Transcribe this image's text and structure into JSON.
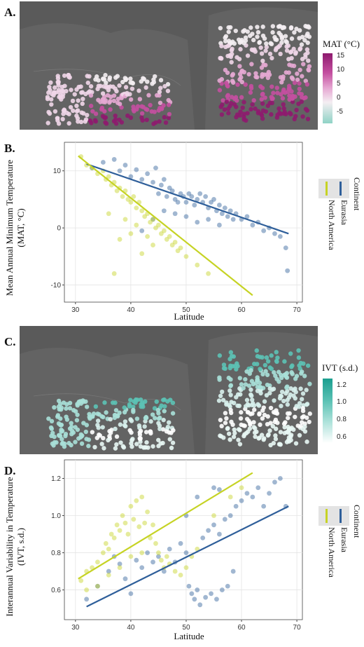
{
  "panels": {
    "a": {
      "letter": "A."
    },
    "b": {
      "letter": "B."
    },
    "c": {
      "letter": "C."
    },
    "d": {
      "letter": "D."
    }
  },
  "legend_mat": {
    "title": "MAT (°C)",
    "ticks": [
      "15",
      "10",
      "5",
      "0",
      "-5"
    ],
    "colors": [
      "#8e1a6e",
      "#c44fa0",
      "#e6a9d3",
      "#f4eef2",
      "#8fd3c6"
    ]
  },
  "legend_ivt": {
    "title": "IVT (s.d.)",
    "ticks": [
      "1.2",
      "1.0",
      "0.8",
      "0.6"
    ],
    "colors": [
      "#1a9e8f",
      "#5cc2b5",
      "#a8e0d8",
      "#ffffff"
    ]
  },
  "continent_legend": {
    "title": "Continent",
    "items": [
      {
        "name": "Eurasia",
        "color": "#2f5f9a"
      },
      {
        "name": "North America",
        "color": "#c6d324"
      }
    ]
  },
  "chart_data": [
    {
      "type": "scatter",
      "panel": "B",
      "xlabel": "Latitude",
      "ylabel": "Mean Annual Minimum Temperature (MAT, °C)",
      "ylabel_lines": [
        "Mean Annual Minimum Temperature",
        "(MAT, °C)"
      ],
      "xlim": [
        28,
        71
      ],
      "ylim": [
        -13,
        15
      ],
      "xticks": [
        30,
        40,
        50,
        60,
        70
      ],
      "yticks": [
        10,
        0,
        -10
      ],
      "grid": true,
      "series": [
        {
          "name": "Eurasia",
          "color": "#2f5f9a",
          "fit": [
            [
              32,
              11.2
            ],
            [
              68.5,
              -1.0
            ]
          ],
          "points": [
            [
              33,
              10.5
            ],
            [
              35,
              11.5
            ],
            [
              37,
              12.0
            ],
            [
              38,
              10.0
            ],
            [
              39,
              11.0
            ],
            [
              40,
              9.0
            ],
            [
              41,
              10.2
            ],
            [
              42,
              8.5
            ],
            [
              43,
              9.5
            ],
            [
              44,
              8.0
            ],
            [
              44.5,
              10.5
            ],
            [
              45,
              6.0
            ],
            [
              45.5,
              7.5
            ],
            [
              46,
              8.5
            ],
            [
              46.5,
              5.5
            ],
            [
              47,
              7.0
            ],
            [
              47.5,
              6.5
            ],
            [
              48,
              5.0
            ],
            [
              48.5,
              4.5
            ],
            [
              49,
              6.0
            ],
            [
              49.5,
              5.5
            ],
            [
              50,
              4.5
            ],
            [
              50.5,
              6.0
            ],
            [
              51,
              5.5
            ],
            [
              51.5,
              4.0
            ],
            [
              52,
              5.0
            ],
            [
              52.5,
              6.0
            ],
            [
              53,
              4.5
            ],
            [
              53.5,
              5.5
            ],
            [
              54,
              3.5
            ],
            [
              54.5,
              4.5
            ],
            [
              55,
              5.0
            ],
            [
              55.5,
              3.0
            ],
            [
              56,
              4.0
            ],
            [
              56.5,
              2.5
            ],
            [
              57,
              3.5
            ],
            [
              57.5,
              2.0
            ],
            [
              58,
              3.0
            ],
            [
              58.5,
              1.5
            ],
            [
              59,
              2.5
            ],
            [
              60,
              1.5
            ],
            [
              61,
              2.0
            ],
            [
              62,
              0.5
            ],
            [
              63,
              1.0
            ],
            [
              64,
              -0.5
            ],
            [
              65,
              0.0
            ],
            [
              66,
              -1.0
            ],
            [
              67,
              -1.5
            ],
            [
              68,
              -3.5
            ],
            [
              68.3,
              -7.5
            ],
            [
              52,
              1.0
            ],
            [
              54,
              1.5
            ],
            [
              48,
              2.5
            ],
            [
              50,
              2.0
            ],
            [
              46,
              3.0
            ],
            [
              44,
              1.5
            ],
            [
              42,
              -0.5
            ],
            [
              56,
              0.5
            ]
          ]
        },
        {
          "name": "North America",
          "color": "#c6d324",
          "fit": [
            [
              30.5,
              12.6
            ],
            [
              62,
              -11.8
            ]
          ],
          "points": [
            [
              31,
              12.5
            ],
            [
              32,
              11.0
            ],
            [
              33,
              10.5
            ],
            [
              34,
              9.5
            ],
            [
              35,
              10.0
            ],
            [
              35.5,
              8.5
            ],
            [
              36,
              9.0
            ],
            [
              36.5,
              7.5
            ],
            [
              37,
              8.0
            ],
            [
              37.5,
              6.5
            ],
            [
              38,
              7.0
            ],
            [
              38.5,
              5.5
            ],
            [
              39,
              6.5
            ],
            [
              39.5,
              5.0
            ],
            [
              40,
              4.5
            ],
            [
              40.5,
              5.5
            ],
            [
              41,
              3.5
            ],
            [
              41.5,
              4.5
            ],
            [
              42,
              3.0
            ],
            [
              42.5,
              2.0
            ],
            [
              43,
              2.5
            ],
            [
              43.5,
              1.0
            ],
            [
              44,
              1.5
            ],
            [
              44.5,
              0.0
            ],
            [
              45,
              0.5
            ],
            [
              45.5,
              -1.0
            ],
            [
              46,
              -0.5
            ],
            [
              46.5,
              -2.0
            ],
            [
              47,
              -1.5
            ],
            [
              47.5,
              -3.0
            ],
            [
              48,
              -2.5
            ],
            [
              48.5,
              -4.0
            ],
            [
              49,
              -3.5
            ],
            [
              50,
              -5.0
            ],
            [
              52,
              -6.5
            ],
            [
              54,
              -8.0
            ],
            [
              38,
              -2.0
            ],
            [
              40,
              -1.0
            ],
            [
              42,
              -4.5
            ],
            [
              44,
              -3.0
            ],
            [
              36,
              2.5
            ],
            [
              39,
              1.5
            ],
            [
              41,
              0.5
            ],
            [
              43,
              -1.5
            ],
            [
              37,
              -8.0
            ]
          ]
        }
      ]
    },
    {
      "type": "scatter",
      "panel": "D",
      "xlabel": "Latitude",
      "ylabel": "Interannual Variability in Temperature (IVT, s.d.)",
      "ylabel_lines": [
        "Interannual Variability in Temperature",
        "(IVT, s.d.)"
      ],
      "xlim": [
        28,
        71
      ],
      "ylim": [
        0.44,
        1.3
      ],
      "xticks": [
        30,
        40,
        50,
        60,
        70
      ],
      "yticks": [
        1.2,
        1.0,
        0.8,
        0.6
      ],
      "grid": true,
      "series": [
        {
          "name": "Eurasia",
          "color": "#2f5f9a",
          "fit": [
            [
              32,
              0.51
            ],
            [
              68.5,
              1.05
            ]
          ],
          "points": [
            [
              32,
              0.55
            ],
            [
              34,
              0.62
            ],
            [
              36,
              0.7
            ],
            [
              37,
              0.78
            ],
            [
              38,
              0.74
            ],
            [
              39,
              0.66
            ],
            [
              40,
              0.58
            ],
            [
              41,
              0.76
            ],
            [
              42,
              0.72
            ],
            [
              43,
              0.8
            ],
            [
              44,
              0.75
            ],
            [
              45,
              0.78
            ],
            [
              46,
              0.7
            ],
            [
              47,
              0.82
            ],
            [
              48,
              0.75
            ],
            [
              49,
              0.85
            ],
            [
              50,
              0.8
            ],
            [
              50.5,
              0.62
            ],
            [
              51,
              0.58
            ],
            [
              51.5,
              0.55
            ],
            [
              52,
              0.6
            ],
            [
              52.5,
              0.52
            ],
            [
              53,
              0.88
            ],
            [
              53.5,
              0.56
            ],
            [
              54,
              0.92
            ],
            [
              54.5,
              0.58
            ],
            [
              55,
              0.95
            ],
            [
              55.5,
              0.55
            ],
            [
              56,
              0.9
            ],
            [
              56.5,
              0.6
            ],
            [
              57,
              0.98
            ],
            [
              57.5,
              0.62
            ],
            [
              58,
              1.0
            ],
            [
              58.5,
              0.7
            ],
            [
              59,
              1.05
            ],
            [
              60,
              1.08
            ],
            [
              61,
              1.12
            ],
            [
              62,
              1.1
            ],
            [
              63,
              1.15
            ],
            [
              64,
              1.05
            ],
            [
              65,
              1.12
            ],
            [
              66,
              1.18
            ],
            [
              67,
              1.2
            ],
            [
              68,
              1.05
            ],
            [
              55,
              1.15
            ],
            [
              56,
              1.14
            ],
            [
              52,
              1.1
            ],
            [
              50,
              1.0
            ]
          ]
        },
        {
          "name": "North America",
          "color": "#c6d324",
          "fit": [
            [
              30.5,
              0.66
            ],
            [
              62,
              1.23
            ]
          ],
          "points": [
            [
              31,
              0.65
            ],
            [
              32,
              0.7
            ],
            [
              33,
              0.72
            ],
            [
              34,
              0.75
            ],
            [
              35,
              0.8
            ],
            [
              35.5,
              0.85
            ],
            [
              36,
              0.82
            ],
            [
              36.5,
              0.9
            ],
            [
              37,
              0.88
            ],
            [
              37.5,
              0.95
            ],
            [
              38,
              0.92
            ],
            [
              38.5,
              1.0
            ],
            [
              39,
              0.96
            ],
            [
              39.5,
              0.9
            ],
            [
              40,
              1.05
            ],
            [
              40.5,
              0.98
            ],
            [
              41,
              1.08
            ],
            [
              41.5,
              0.94
            ],
            [
              42,
              1.1
            ],
            [
              42.5,
              0.96
            ],
            [
              43,
              1.02
            ],
            [
              43.5,
              0.88
            ],
            [
              44,
              0.95
            ],
            [
              44.5,
              0.85
            ],
            [
              45,
              0.8
            ],
            [
              45.5,
              0.76
            ],
            [
              46,
              0.72
            ],
            [
              46.5,
              0.78
            ],
            [
              47,
              0.74
            ],
            [
              48,
              0.7
            ],
            [
              49,
              0.68
            ],
            [
              50,
              0.72
            ],
            [
              51,
              0.78
            ],
            [
              52,
              0.82
            ],
            [
              38,
              0.72
            ],
            [
              36,
              0.68
            ],
            [
              40,
              0.78
            ],
            [
              42,
              0.8
            ],
            [
              34,
              0.62
            ],
            [
              32,
              0.6
            ],
            [
              55,
              1.0
            ],
            [
              58,
              1.1
            ],
            [
              60,
              1.15
            ]
          ]
        }
      ]
    }
  ]
}
